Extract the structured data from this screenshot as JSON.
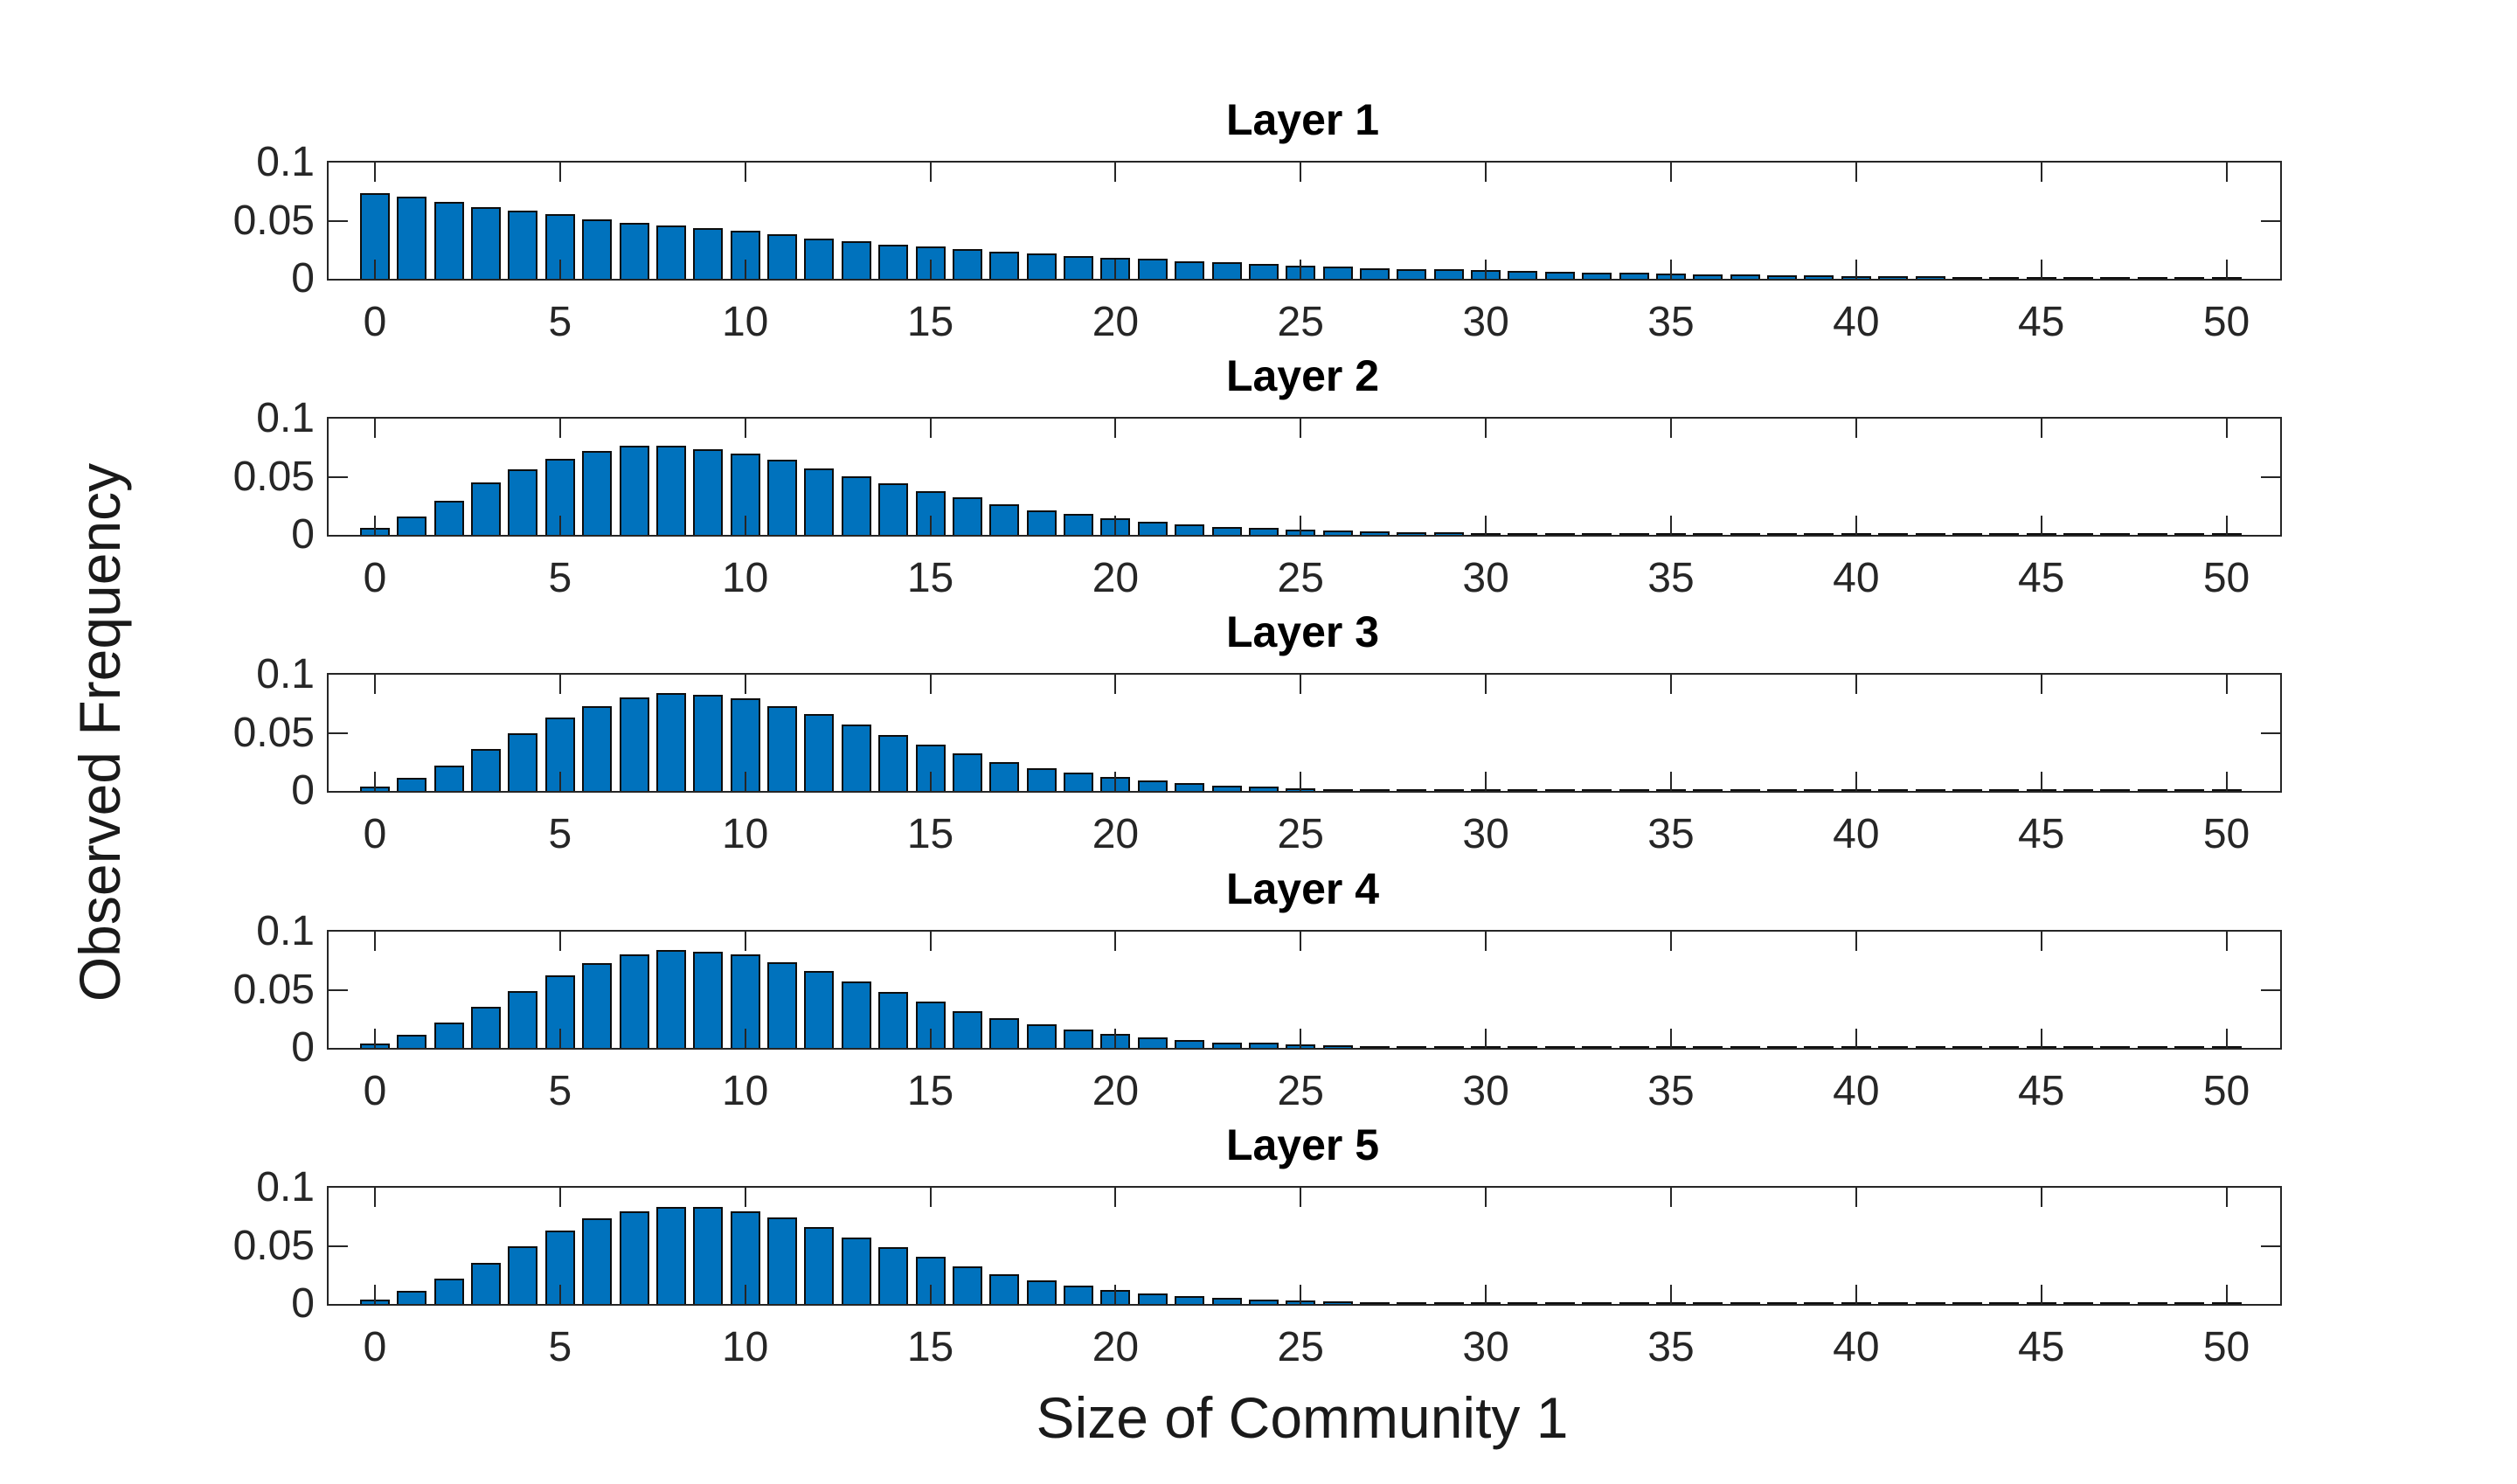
{
  "figure": {
    "background": "#ffffff"
  },
  "chart_data": {
    "type": "bar",
    "layout": "5 vertically stacked subplots sharing x-axis range",
    "xlabel": "Size of Community 1",
    "ylabel": "Observed Frequency",
    "ylim": [
      0,
      0.1
    ],
    "y_tick_values": [
      0,
      0.05,
      0.1
    ],
    "y_tick_labels": [
      "0",
      "0.05",
      "0.1"
    ],
    "x_tick_values": [
      0,
      5,
      10,
      15,
      20,
      25,
      30,
      35,
      40,
      45,
      50
    ],
    "x_tick_labels": [
      "0",
      "5",
      "10",
      "15",
      "20",
      "25",
      "30",
      "35",
      "40",
      "45",
      "50"
    ],
    "xlim": [
      -1.25,
      51.45
    ],
    "grid": false,
    "legend": "none",
    "bar_x_start": 0,
    "bar_x_step": 1,
    "bar_width_units": 0.8,
    "categories": [
      0,
      1,
      2,
      3,
      4,
      5,
      6,
      7,
      8,
      9,
      10,
      11,
      12,
      13,
      14,
      15,
      16,
      17,
      18,
      19,
      20,
      21,
      22,
      23,
      24,
      25,
      26,
      27,
      28,
      29,
      30,
      31,
      32,
      33,
      34,
      35,
      36,
      37,
      38,
      39,
      40,
      41,
      42,
      43,
      44,
      45,
      46,
      47,
      48,
      49,
      50
    ],
    "series": [
      {
        "name": "Layer 1",
        "values": [
          0.074,
          0.0705,
          0.0665,
          0.062,
          0.0585,
          0.0555,
          0.0515,
          0.048,
          0.046,
          0.0435,
          0.0415,
          0.038,
          0.0345,
          0.032,
          0.0295,
          0.0275,
          0.0255,
          0.023,
          0.0215,
          0.0197,
          0.0182,
          0.0171,
          0.0153,
          0.0145,
          0.0128,
          0.0116,
          0.0104,
          0.0094,
          0.0086,
          0.008,
          0.0074,
          0.0067,
          0.0061,
          0.0056,
          0.005,
          0.0045,
          0.004,
          0.0036,
          0.0032,
          0.0029,
          0.0026,
          0.0022,
          0.0019,
          0.0017,
          0.0015,
          0.0013,
          0.0011,
          0.0009,
          0.0008,
          0.0007,
          0.0006
        ]
      },
      {
        "name": "Layer 2",
        "values": [
          0.006,
          0.016,
          0.0295,
          0.045,
          0.0565,
          0.0655,
          0.072,
          0.0765,
          0.0765,
          0.074,
          0.07,
          0.0645,
          0.057,
          0.0505,
          0.0445,
          0.0378,
          0.0325,
          0.0265,
          0.0213,
          0.0178,
          0.014,
          0.0115,
          0.0088,
          0.007,
          0.0058,
          0.0048,
          0.0036,
          0.003,
          0.0026,
          0.0021,
          0.0018,
          0.0008,
          0.0007,
          0.0007,
          0.0006,
          0.0006,
          0.0005,
          0.0005,
          0.0004,
          0.0004,
          0.0004,
          0.0004,
          0.0003,
          0.0003,
          0.0003,
          0.0003,
          0.0002,
          0.0002,
          0.0002,
          0.0002,
          0.0002
        ]
      },
      {
        "name": "Layer 3",
        "values": [
          0.0035,
          0.011,
          0.022,
          0.036,
          0.05,
          0.0635,
          0.073,
          0.0805,
          0.084,
          0.0825,
          0.0795,
          0.073,
          0.066,
          0.057,
          0.0485,
          0.0397,
          0.032,
          0.025,
          0.0198,
          0.0158,
          0.012,
          0.009,
          0.0068,
          0.0045,
          0.0035,
          0.0024,
          0.0018,
          0.0014,
          0.0012,
          0.001,
          0.0006,
          0.0005,
          0.0005,
          0.0004,
          0.0004,
          0.0004,
          0.0003,
          0.0003,
          0.0003,
          0.0003,
          0.0003,
          0.0002,
          0.0002,
          0.0002,
          0.0002,
          0.0002,
          0.0002,
          0.0001,
          0.0001,
          0.0001,
          0.0001
        ]
      },
      {
        "name": "Layer 4",
        "values": [
          0.0038,
          0.0112,
          0.0215,
          0.0353,
          0.0486,
          0.0625,
          0.0728,
          0.0802,
          0.084,
          0.0827,
          0.0802,
          0.0736,
          0.0664,
          0.0568,
          0.0481,
          0.04,
          0.0319,
          0.0259,
          0.02,
          0.0156,
          0.0121,
          0.0091,
          0.0067,
          0.0047,
          0.0042,
          0.0032,
          0.0022,
          0.0015,
          0.0012,
          0.0009,
          0.0006,
          0.0005,
          0.0005,
          0.0004,
          0.0004,
          0.0004,
          0.0003,
          0.0003,
          0.0003,
          0.0003,
          0.0003,
          0.0002,
          0.0002,
          0.0002,
          0.0002,
          0.0002,
          0.0002,
          0.0001,
          0.0001,
          0.0001,
          0.0001
        ]
      },
      {
        "name": "Layer 5",
        "values": [
          0.0037,
          0.0112,
          0.022,
          0.0357,
          0.0495,
          0.0632,
          0.0737,
          0.08,
          0.0837,
          0.0837,
          0.08,
          0.0742,
          0.0662,
          0.0575,
          0.0492,
          0.0405,
          0.032,
          0.0257,
          0.02,
          0.0155,
          0.012,
          0.0088,
          0.0065,
          0.005,
          0.0038,
          0.003,
          0.002,
          0.0015,
          0.0012,
          0.001,
          0.0006,
          0.0005,
          0.0005,
          0.0004,
          0.0004,
          0.0004,
          0.0003,
          0.0003,
          0.0003,
          0.0003,
          0.0003,
          0.0002,
          0.0002,
          0.0002,
          0.0002,
          0.0002,
          0.0001,
          0.0001,
          0.0001,
          0.0001,
          0.0001
        ]
      }
    ],
    "colors": {
      "bar_fill": "#0072BD",
      "bar_edge": "#0d0d0d",
      "axis": "#262626",
      "title_text": "#000000",
      "label_text": "#1a1a1a"
    }
  }
}
